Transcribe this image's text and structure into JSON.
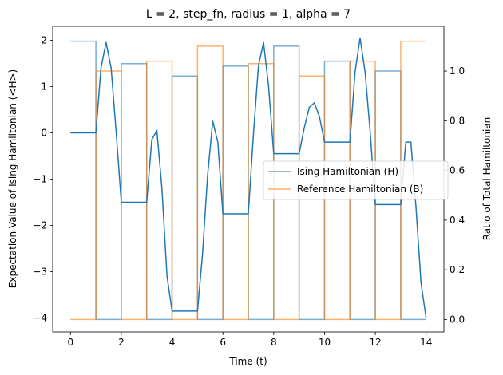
{
  "chart_data": {
    "type": "line",
    "title": "L = 2, step_fn, radius = 1, alpha = 7",
    "xlabel": "Time (t)",
    "ylabel_left": "Expectation Value of Ising Hamiltonian (<H>)",
    "ylabel_right": "Ratio of Total Hamiltonian",
    "xlim": [
      -0.7,
      14.7
    ],
    "ylim_left": [
      -4.3,
      2.3
    ],
    "ylim_right": [
      -0.05,
      1.18
    ],
    "x_ticks": [
      0,
      2,
      4,
      6,
      8,
      10,
      12,
      14
    ],
    "y_left_ticks": [
      -4,
      -3,
      -2,
      -1,
      0,
      1,
      2
    ],
    "y_right_ticks": [
      0.0,
      0.2,
      0.4,
      0.6,
      0.8,
      1.0
    ],
    "x_tick_labels": [
      "0",
      "2",
      "4",
      "6",
      "8",
      "10",
      "12",
      "14"
    ],
    "y_left_tick_labels": [
      "−4",
      "−3",
      "−2",
      "−1",
      "0",
      "1",
      "2"
    ],
    "y_right_tick_labels": [
      "0.0",
      "0.2",
      "0.4",
      "0.6",
      "0.8",
      "1.0"
    ],
    "grid": false,
    "legend_position": "center-right",
    "expectation_series": {
      "axis": "left",
      "color": "#1f77b4",
      "x": [
        0,
        1,
        1.2,
        1.4,
        1.6,
        1.8,
        2,
        3,
        3.2,
        3.4,
        3.6,
        3.8,
        4,
        5,
        5.2,
        5.4,
        5.6,
        5.8,
        6,
        7,
        7.2,
        7.4,
        7.6,
        7.8,
        8,
        9,
        9.2,
        9.4,
        9.6,
        9.8,
        10,
        11,
        11.2,
        11.4,
        11.6,
        11.8,
        12,
        13,
        13.2,
        13.4,
        13.6,
        13.8,
        14
      ],
      "y": [
        0,
        0,
        1.4,
        1.95,
        1.4,
        0,
        -1.5,
        -1.5,
        -0.15,
        0.05,
        -1.2,
        -3.1,
        -3.85,
        -3.85,
        -2.6,
        -0.9,
        0.25,
        -0.2,
        -1.75,
        -1.75,
        -0.05,
        1.45,
        1.95,
        1.0,
        -0.45,
        -0.45,
        0.1,
        0.55,
        0.65,
        0.35,
        -0.2,
        -0.2,
        1.3,
        2.05,
        1.3,
        0,
        -1.55,
        -1.55,
        -0.2,
        -0.2,
        -1.6,
        -3.25,
        -4.0
      ]
    },
    "series": [
      {
        "name": "Ising Hamiltonian (H)",
        "axis": "right",
        "color": "#1f77b4",
        "x": [
          0,
          1,
          1,
          2,
          2,
          3,
          3,
          4,
          4,
          5,
          5,
          6,
          6,
          7,
          7,
          8,
          8,
          9,
          9,
          10,
          10,
          11,
          11,
          12,
          12,
          13,
          13,
          14
        ],
        "y": [
          1.12,
          1.12,
          0,
          0,
          1.03,
          1.03,
          0,
          0,
          0.98,
          0.98,
          0,
          0,
          1.02,
          1.02,
          0,
          0,
          1.1,
          1.1,
          0,
          0,
          1.04,
          1.04,
          0,
          0,
          1.0,
          1.0,
          0,
          0
        ]
      },
      {
        "name": "Reference Hamiltonian (B)",
        "axis": "right",
        "color": "#ff7f0e",
        "x": [
          0,
          1,
          1,
          2,
          2,
          3,
          3,
          4,
          4,
          5,
          5,
          6,
          6,
          7,
          7,
          8,
          8,
          9,
          9,
          10,
          10,
          11,
          11,
          12,
          12,
          13,
          13,
          14
        ],
        "y": [
          0,
          0,
          1.0,
          1.0,
          0,
          0,
          1.04,
          1.04,
          0,
          0,
          1.1,
          1.1,
          0,
          0,
          1.03,
          1.03,
          0,
          0,
          0.98,
          0.98,
          0,
          0,
          1.04,
          1.04,
          0,
          0,
          1.12,
          1.12
        ]
      }
    ]
  }
}
